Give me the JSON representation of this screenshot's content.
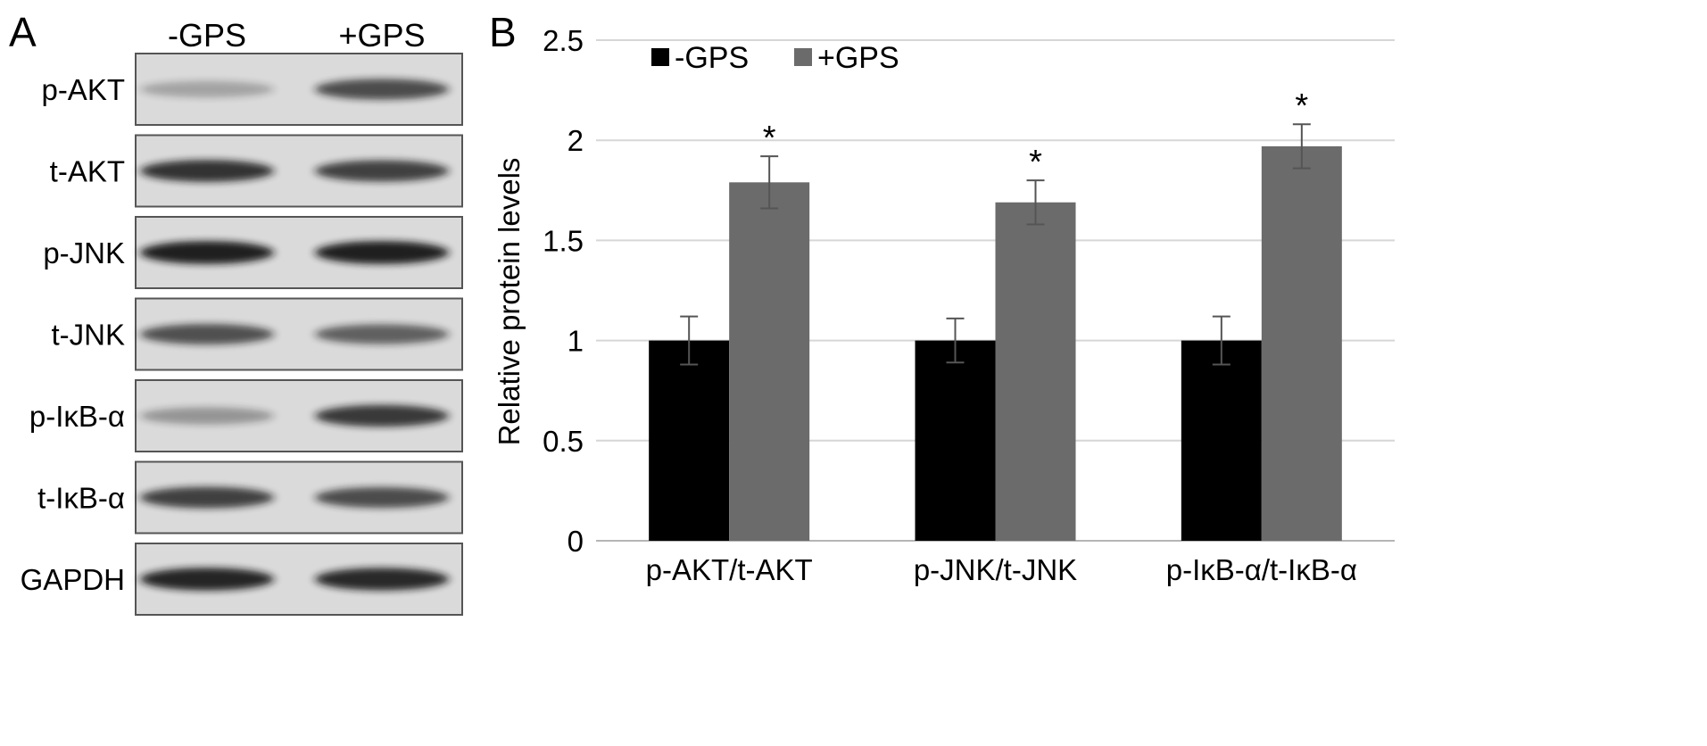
{
  "panel_a": {
    "label": "A",
    "lane_labels": [
      "-GPS",
      "+GPS"
    ],
    "blots": [
      {
        "protein": "p-AKT",
        "band_intensity": [
          0.28,
          0.72
        ]
      },
      {
        "protein": "t-AKT",
        "band_intensity": [
          0.85,
          0.78
        ]
      },
      {
        "protein": "p-JNK",
        "band_intensity": [
          0.95,
          0.95
        ]
      },
      {
        "protein": "t-JNK",
        "band_intensity": [
          0.7,
          0.62
        ]
      },
      {
        "protein": "p-IκB-α",
        "band_intensity": [
          0.35,
          0.82
        ]
      },
      {
        "protein": "t-IκB-α",
        "band_intensity": [
          0.78,
          0.72
        ]
      },
      {
        "protein": "GAPDH",
        "band_intensity": [
          0.92,
          0.9
        ]
      }
    ],
    "colors": {
      "membrane": "#dadada",
      "band": "#141414",
      "border": "#555555"
    }
  },
  "panel_b": {
    "label": "B"
  },
  "chart_data": {
    "type": "bar",
    "title": "",
    "xlabel": "",
    "ylabel": "Relative protein levels",
    "categories": [
      "p-AKT/t-AKT",
      "p-JNK/t-JNK",
      "p-IκB-α/t-IκB-α"
    ],
    "series": [
      {
        "name": "-GPS",
        "values": [
          1.0,
          1.0,
          1.0
        ],
        "errors": [
          0.12,
          0.11,
          0.12
        ],
        "color": "#000000"
      },
      {
        "name": "+GPS",
        "values": [
          1.79,
          1.69,
          1.97
        ],
        "errors": [
          0.13,
          0.11,
          0.11
        ],
        "color": "#6b6b6b"
      }
    ],
    "significance": [
      "*",
      "*",
      "*"
    ],
    "ylim": [
      0,
      2.5
    ],
    "yticks": [
      0,
      0.5,
      1,
      1.5,
      2,
      2.5
    ],
    "ytick_labels": [
      "0",
      "0.5",
      "1",
      "1.5",
      "2",
      "2.5"
    ],
    "grid": true,
    "legend_position": "top-left"
  }
}
